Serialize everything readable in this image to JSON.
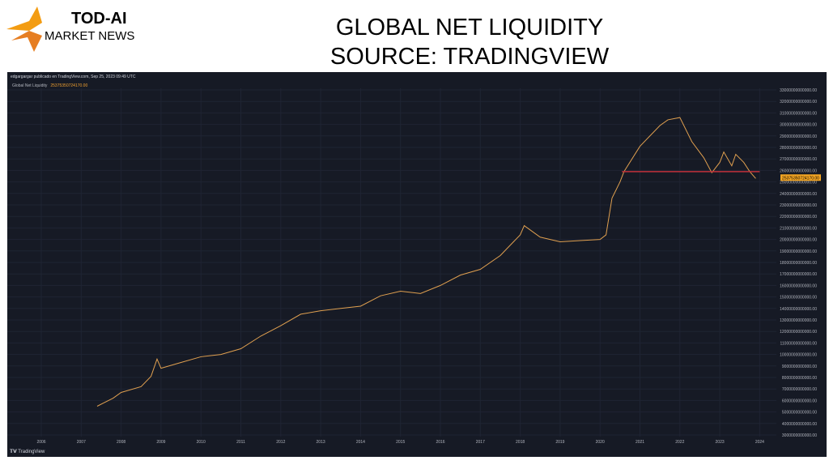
{
  "branding": {
    "name": "TOD-AI",
    "subtitle": "MARKET NEWS"
  },
  "title_line1": "GLOBAL NET LIQUIDITY",
  "title_line2": "SOURCE: TRADINGVIEW",
  "chart_header": "edgargargar publicado en TradingView.com, Sep 25, 2023 09:49 UTC",
  "footer": "TradingView",
  "colors": {
    "background": "#161a25",
    "line": "#e0a050",
    "level_line": "#c0303a",
    "price_label": "#f5a623"
  },
  "chart_data": {
    "type": "line",
    "legend": {
      "name": "Global Net Liquidity",
      "value": "25375350724170.00",
      "placement": "top-left"
    },
    "x_ticks": [
      "2006",
      "2007",
      "2008",
      "2009",
      "2010",
      "2011",
      "2012",
      "2013",
      "2014",
      "2015",
      "2016",
      "2017",
      "2018",
      "2019",
      "2020",
      "2021",
      "2022",
      "2023",
      "2024"
    ],
    "y_ticks": [
      "33000000000000.00",
      "32000000000000.00",
      "31000000000000.00",
      "30000000000000.00",
      "29000000000000.00",
      "28000000000000.00",
      "27000000000000.00",
      "26000000000000.00",
      "25000000000000.00",
      "24000000000000.00",
      "23000000000000.00",
      "22000000000000.00",
      "21000000000000.00",
      "20000000000000.00",
      "19000000000000.00",
      "18000000000000.00",
      "17000000000000.00",
      "16000000000000.00",
      "15000000000000.00",
      "14000000000000.00",
      "13000000000000.00",
      "12000000000000.00",
      "11000000000000.00",
      "10000000000000.00",
      "9000000000000.00",
      "8000000000000.00",
      "7000000000000.00",
      "6000000000000.00",
      "5000000000000.00",
      "4000000000000.00",
      "3000000000000.00"
    ],
    "xlim": [
      2005.2,
      2024.5
    ],
    "ylim_trillions": [
      2.5,
      34
    ],
    "grid": true,
    "y_unit": "trillions",
    "series": [
      {
        "x": [
          2007.4,
          2007.8,
          2008.0,
          2008.5,
          2008.75,
          2008.9,
          2009.0,
          2009.5,
          2010.0,
          2010.5,
          2011.0,
          2011.5,
          2012.0,
          2012.5,
          2013.0,
          2013.5,
          2014.0,
          2014.5,
          2015.0,
          2015.5,
          2016.0,
          2016.5,
          2017.0,
          2017.5,
          2018.0,
          2018.1,
          2018.5,
          2019.0,
          2019.5,
          2020.0,
          2020.15,
          2020.3,
          2020.5,
          2020.6,
          2021.0,
          2021.5,
          2021.7,
          2022.0,
          2022.3,
          2022.6,
          2022.8,
          2023.0,
          2023.1,
          2023.3,
          2023.4,
          2023.6,
          2023.75,
          2023.9
        ],
        "y": [
          5.5,
          6.2,
          6.7,
          7.2,
          8.1,
          9.6,
          8.8,
          9.3,
          9.8,
          10.0,
          10.5,
          11.6,
          12.5,
          13.5,
          13.8,
          14.0,
          14.2,
          15.1,
          15.5,
          15.3,
          16.0,
          16.9,
          17.4,
          18.6,
          20.4,
          21.2,
          20.2,
          19.8,
          19.9,
          20.0,
          20.4,
          23.6,
          25.0,
          25.9,
          28.1,
          29.9,
          30.4,
          30.6,
          28.5,
          27.1,
          25.8,
          26.7,
          27.6,
          26.4,
          27.4,
          26.7,
          25.9,
          25.3
        ]
      }
    ],
    "horizontal_level": {
      "y": 25.9,
      "x_start": 2020.55,
      "x_end": 2024.0
    }
  }
}
